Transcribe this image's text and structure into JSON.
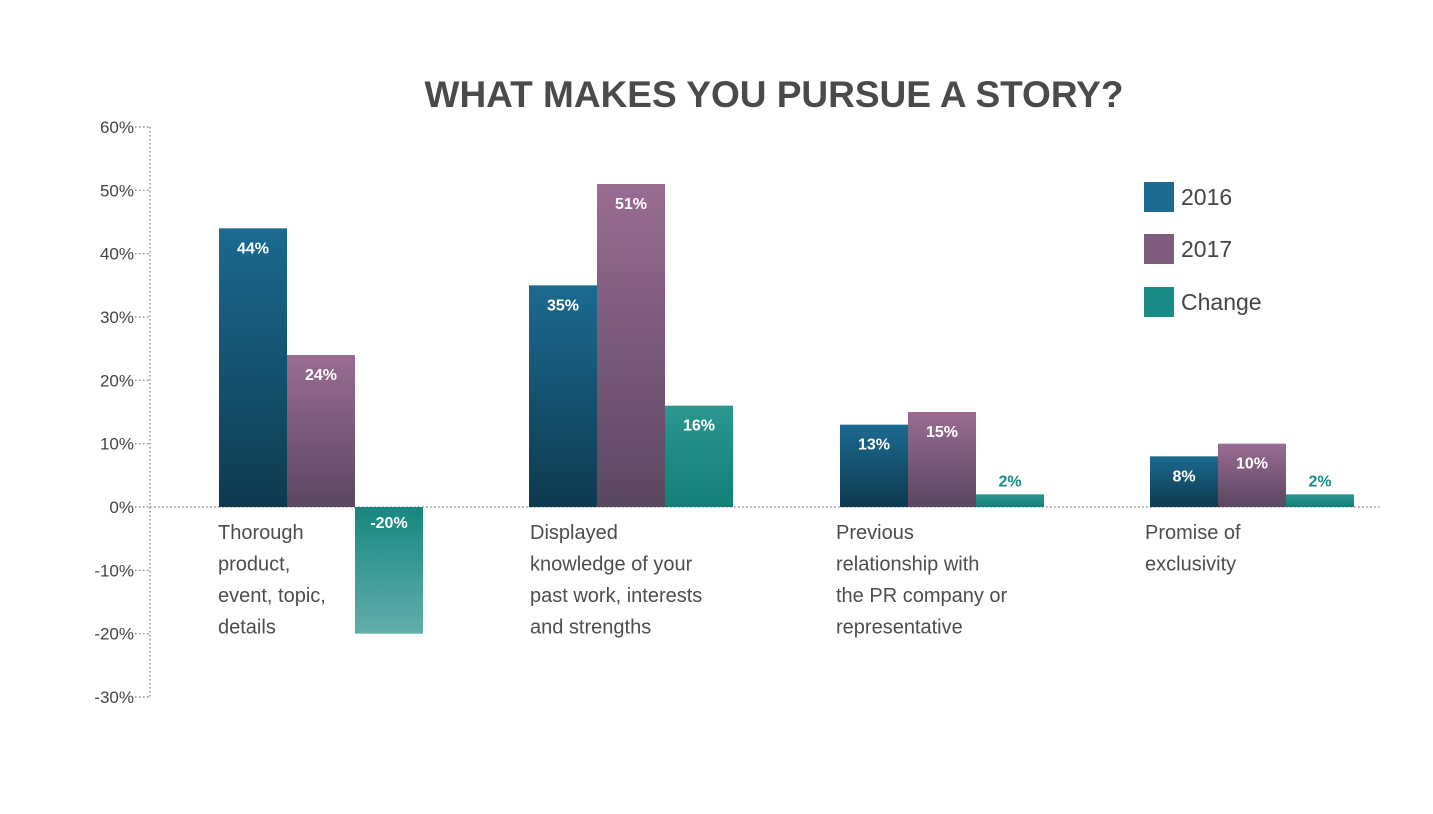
{
  "chart_data": {
    "type": "bar",
    "title": "WHAT MAKES YOU PURSUE A STORY?",
    "xlabel": "",
    "ylabel": "",
    "ylim": [
      -30,
      60
    ],
    "y_ticks": [
      60,
      50,
      40,
      30,
      20,
      10,
      0,
      -10,
      -20,
      -30
    ],
    "y_tick_labels": [
      "60%",
      "50%",
      "40%",
      "30%",
      "20%",
      "10%",
      "0%",
      "-10%",
      "-20%",
      "-30%"
    ],
    "grid": false,
    "legend_position": "top-right",
    "categories": [
      "Thorough product, event, topic, details",
      "Displayed knowledge of your past work, interests and strengths",
      "Previous relationship with the PR company or representative",
      "Promise of exclusivity"
    ],
    "category_label_lines": [
      [
        "Thorough",
        "product,",
        "event, topic,",
        "details"
      ],
      [
        "Displayed",
        "knowledge of your",
        "past work, interests",
        "and strengths"
      ],
      [
        "Previous",
        "relationship with",
        "the PR company or",
        "representative"
      ],
      [
        "Promise of",
        "exclusivity"
      ]
    ],
    "series": [
      {
        "name": "2016",
        "color_top": "#1b6a90",
        "color_bottom": "#0e3a4f",
        "values": [
          44,
          35,
          13,
          8
        ],
        "labels": [
          "44%",
          "35%",
          "13%",
          "8%"
        ]
      },
      {
        "name": "2017",
        "color_top": "#9a6c93",
        "color_bottom": "#5a4760",
        "values": [
          24,
          51,
          15,
          10
        ],
        "labels": [
          "24%",
          "51%",
          "15%",
          "10%"
        ]
      },
      {
        "name": "Change",
        "color_top": "#1a8c86",
        "color_bottom": "#1a8c86",
        "values": [
          -20,
          16,
          2,
          2
        ],
        "labels": [
          "-20%",
          "16%",
          "2%",
          "2%"
        ]
      }
    ],
    "legend_colors": [
      "#1b6a90",
      "#7d5c7c",
      "#1a8c86"
    ]
  }
}
